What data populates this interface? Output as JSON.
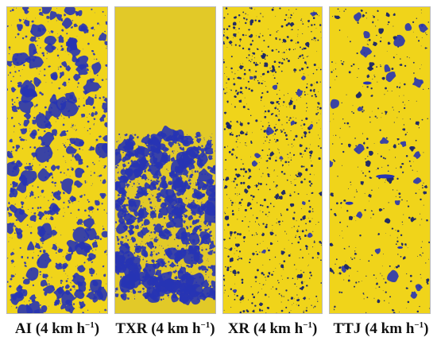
{
  "colors": {
    "background": "#ffffff",
    "yellow": "#f1d51b",
    "blue": "#2734b4",
    "dark_blue": "#17246a",
    "border": "#b9b9b9"
  },
  "panels": [
    {
      "id": "AI",
      "label_main": "AI (4 km h",
      "label_sup": "−1",
      "label_end": ")",
      "droplet_density": "high",
      "droplet_size": "large"
    },
    {
      "id": "TXR",
      "label_main": "TXR (4 km h",
      "label_sup": "−1",
      "label_end": ")",
      "droplet_density": "very high",
      "droplet_size": "large"
    },
    {
      "id": "XR",
      "label_main": "XR (4 km h",
      "label_sup": "−1",
      "label_end": ")",
      "droplet_density": "high",
      "droplet_size": "small"
    },
    {
      "id": "TTJ",
      "label_main": "TTJ (4 km h",
      "label_sup": "−1",
      "label_end": ")",
      "droplet_density": "low",
      "droplet_size": "small"
    }
  ]
}
